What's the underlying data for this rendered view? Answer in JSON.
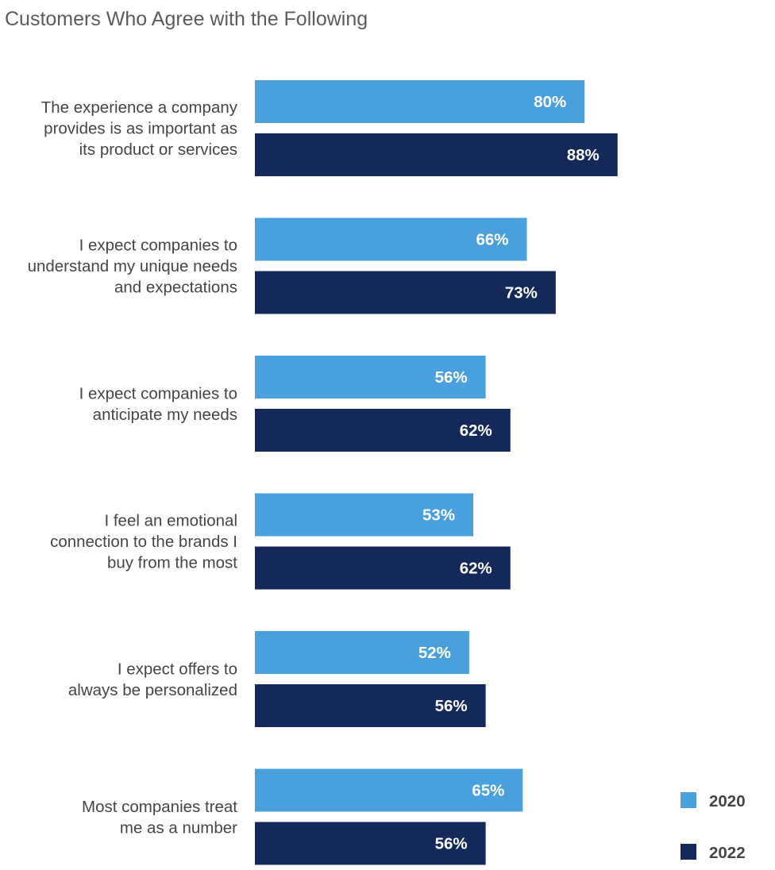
{
  "chart_data": {
    "type": "bar",
    "orientation": "horizontal",
    "title": "Customers Who Agree with the Following",
    "categories": [
      [
        "The experience a company",
        "provides is as important as",
        "its product or services"
      ],
      [
        "I expect companies to",
        "understand my unique needs",
        "and expectations"
      ],
      [
        "I expect companies to",
        "anticipate my needs"
      ],
      [
        "I feel an emotional",
        "connection to the brands I",
        "buy from the most"
      ],
      [
        "I expect offers to",
        "always be personalized"
      ],
      [
        "Most companies treat",
        "me as a number"
      ]
    ],
    "series": [
      {
        "name": "2020",
        "color": "#4aa0dc",
        "values": [
          80,
          66,
          56,
          53,
          52,
          65
        ]
      },
      {
        "name": "2022",
        "color": "#14295a",
        "values": [
          88,
          73,
          62,
          62,
          56,
          56
        ]
      }
    ],
    "value_suffix": "%",
    "xlim": [
      0,
      100
    ],
    "xlabel": "",
    "ylabel": "",
    "grid": false,
    "legend_position": "bottom-right"
  }
}
